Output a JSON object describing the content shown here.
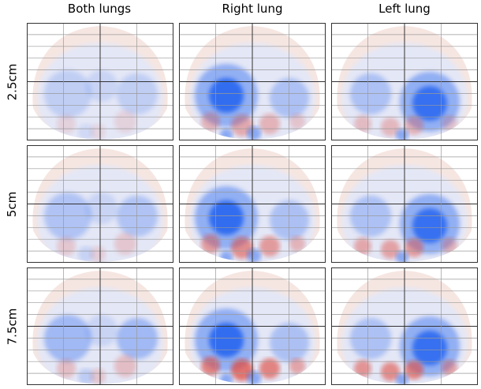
{
  "columns": [
    {
      "title": "Both lungs"
    },
    {
      "title": "Right lung"
    },
    {
      "title": "Left lung"
    }
  ],
  "rows": [
    {
      "label": "2.5cm"
    },
    {
      "label": "5cm"
    },
    {
      "label": "7.5cm"
    }
  ],
  "colors": {
    "positive": "#e0483c",
    "negative": "#2f6bf0",
    "background_pale": "#f6e6e1",
    "inner_pale": "#e4e7f6"
  }
}
